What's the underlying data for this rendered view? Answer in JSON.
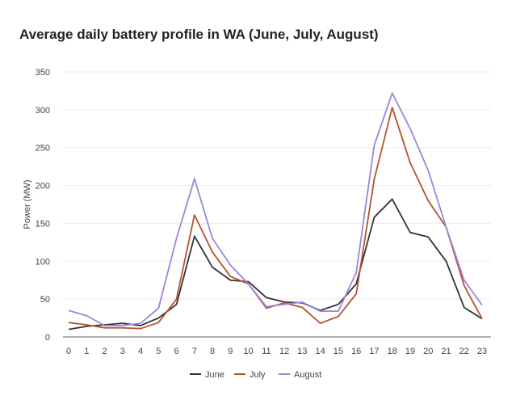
{
  "chart_data": {
    "type": "line",
    "title": "Average daily battery profile in WA (June, July, August)",
    "xlabel": "",
    "ylabel": "Power (MW)",
    "ylim": [
      0,
      350
    ],
    "yticks": [
      0,
      50,
      100,
      150,
      200,
      250,
      300,
      350
    ],
    "x": [
      0,
      1,
      2,
      3,
      4,
      5,
      6,
      7,
      8,
      9,
      10,
      11,
      12,
      13,
      14,
      15,
      16,
      17,
      18,
      19,
      20,
      21,
      22,
      23
    ],
    "grid": true,
    "legend": "bottom",
    "series": [
      {
        "name": "June",
        "color": "#333333",
        "values": [
          10,
          14,
          16,
          18,
          15,
          25,
          43,
          133,
          92,
          75,
          73,
          52,
          46,
          45,
          35,
          43,
          70,
          158,
          182,
          138,
          132,
          100,
          39,
          24
        ]
      },
      {
        "name": "July",
        "color": "#b5532b",
        "values": [
          19,
          16,
          12,
          12,
          11,
          19,
          50,
          161,
          112,
          80,
          70,
          38,
          45,
          39,
          18,
          27,
          57,
          208,
          303,
          230,
          180,
          145,
          68,
          24
        ]
      },
      {
        "name": "August",
        "color": "#9b86d9",
        "values": [
          35,
          28,
          15,
          15,
          18,
          38,
          130,
          209,
          130,
          95,
          70,
          40,
          43,
          46,
          34,
          34,
          85,
          253,
          322,
          275,
          220,
          145,
          75,
          42
        ]
      }
    ]
  }
}
